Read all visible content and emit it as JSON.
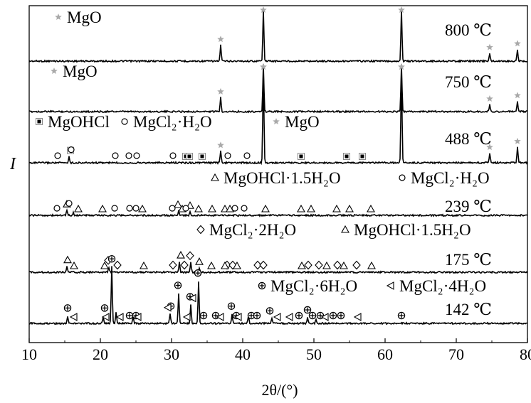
{
  "chart_data": {
    "type": "line",
    "title": "",
    "xlabel": "2θ/(°)",
    "ylabel": "I",
    "xlim": [
      10,
      80
    ],
    "x_ticks": [
      "10",
      "20",
      "30",
      "40",
      "50",
      "60",
      "70",
      "80"
    ],
    "grid": false,
    "panels": [
      {
        "temperature": "800 ℃",
        "legend_items": [
          {
            "marker": "star",
            "label": "MgO"
          }
        ],
        "series": [
          {
            "baseline": 0.05,
            "peaks": [
              [
                36.9,
                0.3
              ],
              [
                42.9,
                0.98
              ],
              [
                62.3,
                0.98
              ],
              [
                74.7,
                0.15
              ],
              [
                78.6,
                0.22
              ]
            ],
            "markers": [
              {
                "type": "star",
                "x": [
                  36.9,
                  42.9,
                  62.3,
                  74.7,
                  78.6
                ]
              }
            ]
          }
        ]
      },
      {
        "temperature": "750 ℃",
        "legend_items": [
          {
            "marker": "star",
            "label": "MgO"
          }
        ],
        "series": [
          {
            "baseline": 0.05,
            "peaks": [
              [
                36.9,
                0.3
              ],
              [
                42.9,
                0.98
              ],
              [
                62.3,
                0.98
              ],
              [
                74.7,
                0.15
              ],
              [
                78.6,
                0.22
              ]
            ],
            "markers": [
              {
                "type": "star",
                "x": [
                  36.9,
                  42.9,
                  62.3,
                  74.7,
                  78.6
                ]
              }
            ]
          }
        ]
      },
      {
        "temperature": "488 ℃",
        "legend_items": [
          {
            "marker": "square",
            "label": "MgOHCl"
          },
          {
            "marker": "circle",
            "label": "MgCl₂·H₂O"
          },
          {
            "marker": "star",
            "label": "MgO"
          }
        ],
        "series": [
          {
            "baseline": 0.05,
            "peaks": [
              [
                15.6,
                0.06
              ],
              [
                36.9,
                0.12
              ],
              [
                42.9,
                0.98
              ],
              [
                62.3,
                0.98
              ],
              [
                74.7,
                0.1
              ],
              [
                78.6,
                0.16
              ]
            ],
            "markers": [
              {
                "type": "square",
                "x": [
                  15.8,
                  32.0,
                  32.5,
                  34.3,
                  48.2,
                  54.6,
                  56.8
                ]
              },
              {
                "type": "circle",
                "x": [
                  14.0,
                  15.9,
                  22.1,
                  24.0,
                  25.1,
                  30.2,
                  37.9,
                  40.6
                ]
              },
              {
                "type": "star",
                "x": [
                  36.9,
                  42.9,
                  62.3,
                  74.7,
                  78.6
                ]
              }
            ]
          }
        ]
      },
      {
        "temperature": "239 ℃",
        "legend_items": [
          {
            "marker": "triangle-up",
            "label": "MgOHCl·1.5H₂O"
          },
          {
            "marker": "circle",
            "label": "MgCl₂·H₂O"
          }
        ],
        "series": [
          {
            "baseline": 0.05,
            "peaks": [
              [
                15.3,
                0.1
              ],
              [
                16.2,
                0.05
              ],
              [
                31.0,
                0.09
              ],
              [
                32.6,
                0.07
              ]
            ],
            "markers": [
              {
                "type": "triangle-up",
                "x": [
                  15.3,
                  16.9,
                  20.3,
                  25.9,
                  30.9,
                  31.5,
                  32.6,
                  33.8,
                  35.7,
                  37.5,
                  38.2,
                  43.2,
                  48.2,
                  49.6,
                  53.2,
                  55.0,
                  58.0
                ]
              },
              {
                "type": "circle",
                "x": [
                  13.9,
                  15.6,
                  22.0,
                  24.1,
                  25.0,
                  30.1,
                  32.0,
                  38.9,
                  40.2
                ]
              }
            ]
          }
        ]
      },
      {
        "temperature": "175 ℃",
        "legend_items": [
          {
            "marker": "diamond",
            "label": "MgCl₂·2H₂O"
          },
          {
            "marker": "triangle-up",
            "label": "MgOHCl·1.5H₂O"
          }
        ],
        "series": [
          {
            "baseline": 0.05,
            "peaks": [
              [
                15.3,
                0.1
              ],
              [
                21.2,
                0.08
              ],
              [
                31.1,
                0.18
              ],
              [
                32.7,
                0.16
              ],
              [
                33.9,
                0.07
              ]
            ],
            "markers": [
              {
                "type": "diamond",
                "x": [
                  21.1,
                  22.4,
                  30.2,
                  31.8,
                  32.6,
                  37.8,
                  38.6,
                  42.1,
                  42.9,
                  49.2,
                  50.7,
                  53.3,
                  56.0
                ]
              },
              {
                "type": "triangle-up",
                "x": [
                  15.4,
                  16.3,
                  20.6,
                  26.1,
                  31.3,
                  33.9,
                  35.6,
                  37.5,
                  39.2,
                  48.3,
                  51.8,
                  54.2,
                  58.1
                ]
              }
            ]
          }
        ]
      },
      {
        "temperature": "142 ℃",
        "legend_items": [
          {
            "marker": "circle-plus",
            "label": "MgCl₂·6H₂O"
          },
          {
            "marker": "triangle-left",
            "label": "MgCl₂·4H₂O"
          }
        ],
        "series": [
          {
            "baseline": 0.05,
            "peaks": [
              [
                15.4,
                0.08
              ],
              [
                20.4,
                0.08
              ],
              [
                21.6,
                0.6
              ],
              [
                22.2,
                0.12
              ],
              [
                24.6,
                0.08
              ],
              [
                29.8,
                0.1
              ],
              [
                31.0,
                0.32
              ],
              [
                32.7,
                0.2
              ],
              [
                33.8,
                0.45
              ],
              [
                38.5,
                0.1
              ],
              [
                40.8,
                0.08
              ],
              [
                44.1,
                0.05
              ],
              [
                49.1,
                0.06
              ],
              [
                50.3,
                0.05
              ]
            ],
            "markers": [
              {
                "type": "circle-plus",
                "x": [
                  15.4,
                  20.6,
                  21.6,
                  24.1,
                  25.0,
                  29.9,
                  30.9,
                  32.6,
                  33.7,
                  34.5,
                  36.2,
                  38.4,
                  39.1,
                  41.2,
                  42.0,
                  43.8,
                  47.9,
                  49.1,
                  49.8,
                  50.9,
                  52.7,
                  53.8,
                  62.3
                ]
              },
              {
                "type": "triangle-left",
                "x": [
                  16.3,
                  20.8,
                  22.8,
                  25.3,
                  29.5,
                  32.2,
                  33.0,
                  36.9,
                  39.4,
                  44.9,
                  46.6,
                  51.6,
                  56.2
                ]
              }
            ]
          }
        ]
      }
    ]
  }
}
